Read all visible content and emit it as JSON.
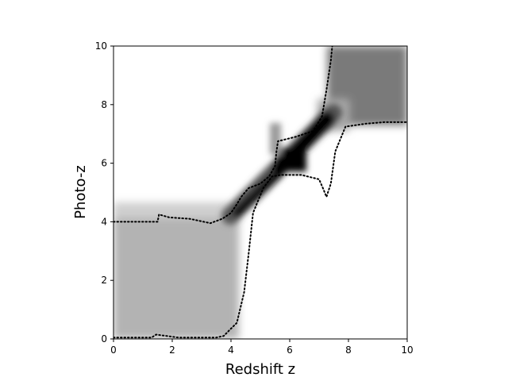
{
  "chart_data": {
    "type": "heatmap",
    "title": "",
    "xlabel": "Redshift z",
    "ylabel": "Photo-z",
    "xlim": [
      0,
      10
    ],
    "ylim": [
      0,
      10
    ],
    "xticks": [
      0,
      2,
      4,
      6,
      8,
      10
    ],
    "yticks": [
      0,
      2,
      4,
      6,
      8,
      10
    ],
    "colormap": "gray_r",
    "grid": false,
    "legend": "none",
    "density_regions": [
      {
        "name": "low-z-plateau",
        "x_range": [
          0,
          4.2
        ],
        "y_range": [
          0,
          4.2
        ],
        "level": 0.33
      },
      {
        "name": "high-z-block",
        "x_range": [
          7.3,
          10
        ],
        "y_range": [
          7.4,
          10
        ],
        "level": 0.55
      },
      {
        "name": "diagonal-ridge-lower",
        "from": [
          4.1,
          4.2
        ],
        "to": [
          5.6,
          5.7
        ],
        "level": 0.95
      },
      {
        "name": "diagonal-ridge-upper",
        "from": [
          5.6,
          5.7
        ],
        "to": [
          7.3,
          7.4
        ],
        "level": 1.0
      }
    ],
    "contour_series": [
      {
        "style": "dotted",
        "color": "#000000",
        "points": [
          [
            0,
            4.0
          ],
          [
            1.5,
            4.0
          ],
          [
            1.55,
            4.25
          ],
          [
            1.9,
            4.15
          ],
          [
            2.6,
            4.1
          ],
          [
            3.3,
            3.95
          ],
          [
            3.7,
            4.1
          ],
          [
            4.0,
            4.3
          ],
          [
            4.2,
            4.6
          ],
          [
            4.35,
            4.85
          ],
          [
            4.6,
            5.15
          ],
          [
            5.0,
            5.3
          ],
          [
            5.3,
            5.55
          ],
          [
            5.5,
            5.9
          ],
          [
            5.55,
            6.4
          ],
          [
            5.6,
            6.75
          ],
          [
            6.2,
            6.9
          ],
          [
            6.8,
            7.1
          ],
          [
            7.1,
            7.6
          ],
          [
            7.25,
            8.5
          ],
          [
            7.4,
            9.5
          ],
          [
            7.45,
            10
          ]
        ]
      },
      {
        "style": "dotted",
        "color": "#000000",
        "points": [
          [
            0,
            0.05
          ],
          [
            1.3,
            0.05
          ],
          [
            1.45,
            0.15
          ],
          [
            2.2,
            0.05
          ],
          [
            3.5,
            0.05
          ],
          [
            3.75,
            0.1
          ],
          [
            3.95,
            0.3
          ],
          [
            4.2,
            0.55
          ],
          [
            4.45,
            1.6
          ],
          [
            4.6,
            2.9
          ],
          [
            4.75,
            4.3
          ],
          [
            5.1,
            5.15
          ],
          [
            5.4,
            5.55
          ],
          [
            5.7,
            5.6
          ],
          [
            6.4,
            5.6
          ],
          [
            7.0,
            5.45
          ],
          [
            7.15,
            5.1
          ],
          [
            7.25,
            4.85
          ],
          [
            7.4,
            5.3
          ],
          [
            7.55,
            6.4
          ],
          [
            7.9,
            7.25
          ],
          [
            8.6,
            7.35
          ],
          [
            9.2,
            7.4
          ],
          [
            10,
            7.4
          ]
        ]
      }
    ]
  }
}
